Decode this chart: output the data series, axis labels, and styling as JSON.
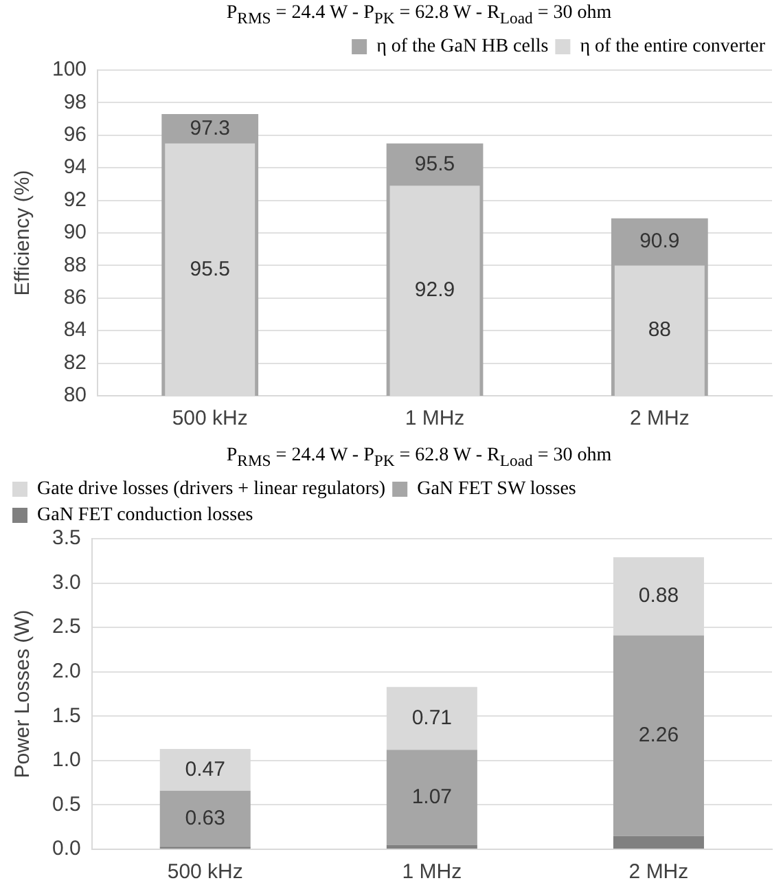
{
  "chart_data": [
    {
      "type": "bar",
      "title": "P$_{RMS}$ = 24.4 W  -  P$_{PK}$ = 62.8 W  -  R$_{Load}$ = 30 ohm",
      "ylabel": "Efficiency (%)",
      "categories": [
        "500 kHz",
        "1 MHz",
        "2 MHz"
      ],
      "series": [
        {
          "name": "η of the GaN HB cells",
          "color": "#a6a6a6",
          "values": [
            97.3,
            95.5,
            90.9
          ]
        },
        {
          "name": "η of the entire converter",
          "color": "#d9d9d9",
          "values": [
            95.5,
            92.9,
            88
          ]
        }
      ],
      "ylim": [
        80,
        100
      ],
      "yticks": [
        80,
        82,
        84,
        86,
        88,
        90,
        92,
        94,
        96,
        98,
        100
      ],
      "grid": "y",
      "legend": "top right",
      "data_labels": true
    },
    {
      "type": "bar",
      "stacked": true,
      "title": "P$_{RMS}$ = 24.4 W  -  P$_{PK}$ = 62.8 W  -  R$_{Load}$ = 30 ohm",
      "ylabel": "Power Losses (W)",
      "categories": [
        "500 kHz",
        "1 MHz",
        "2 MHz"
      ],
      "series": [
        {
          "name": "GaN FET conduction losses",
          "color": "#808080",
          "values": [
            0.03,
            0.05,
            0.15
          ],
          "value_labels": [
            null,
            null,
            null
          ]
        },
        {
          "name": "GaN FET SW losses",
          "color": "#a6a6a6",
          "values": [
            0.63,
            1.07,
            2.26
          ],
          "value_labels": [
            "0.63",
            "1.07",
            "2.26"
          ]
        },
        {
          "name": "Gate drive losses (drivers + linear regulators)",
          "color": "#d9d9d9",
          "values": [
            0.47,
            0.71,
            0.88
          ],
          "value_labels": [
            "0.47",
            "0.71",
            "0.88"
          ]
        }
      ],
      "ylim": [
        0,
        3.5
      ],
      "yticks": [
        {
          "value": 0,
          "label": "0.0"
        },
        0.5,
        {
          "value": 1,
          "label": "1.0"
        },
        1.5,
        {
          "value": 2,
          "label": "2.0"
        },
        2.5,
        {
          "value": 3,
          "label": "3.0"
        },
        3.5
      ],
      "grid": "y",
      "legend": "top left"
    }
  ]
}
